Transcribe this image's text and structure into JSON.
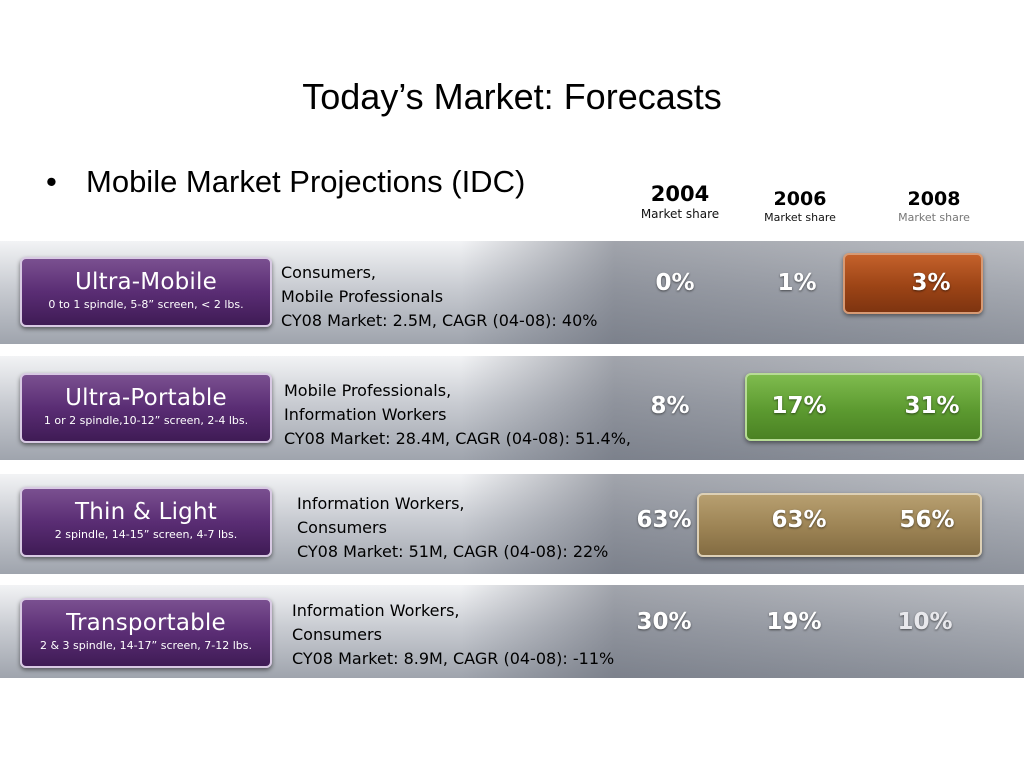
{
  "title": "Today’s Market: Forecasts",
  "bullet": {
    "marker": "•",
    "text": "Mobile Market Projections (IDC)"
  },
  "columns": [
    {
      "year": "2004",
      "label": "Market share"
    },
    {
      "year": "2006",
      "label": "Market share"
    },
    {
      "year": "2008",
      "label": "Market share"
    }
  ],
  "segments": [
    {
      "name": "Ultra-Mobile",
      "spec": "0  to 1 spindle, 5-8” screen, < 2 lbs.",
      "desc": [
        "Consumers,",
        "Mobile Professionals",
        "CY08 Market: 2.5M, CAGR (04-08): 40%"
      ],
      "shares": [
        "0%",
        "1%",
        "3%"
      ],
      "highlight_color": "#a84a1c"
    },
    {
      "name": "Ultra-Portable",
      "spec": "1 or 2 spindle,10-12” screen, 2-4 lbs.",
      "desc": [
        "Mobile Professionals,",
        "Information Workers",
        "CY08 Market: 28.4M, CAGR (04-08): 51.4%,"
      ],
      "shares": [
        "8%",
        "17%",
        "31%"
      ],
      "highlight_color": "#5f9a34"
    },
    {
      "name": "Thin & Light",
      "spec": "2 spindle, 14-15” screen, 4-7 lbs.",
      "desc": [
        "Information Workers,",
        "Consumers",
        "CY08 Market: 51M, CAGR (04-08): 22%"
      ],
      "shares": [
        "63%",
        "63%",
        "56%"
      ],
      "highlight_color": "#a08a5e"
    },
    {
      "name": "Transportable",
      "spec": "2 & 3 spindle, 14-17” screen, 7-12 lbs.",
      "desc": [
        "Information Workers,",
        "Consumers",
        "CY08 Market: 8.9M, CAGR (04-08): -11%"
      ],
      "shares": [
        "30%",
        "19%",
        "10%"
      ],
      "highlight_color": ""
    }
  ]
}
